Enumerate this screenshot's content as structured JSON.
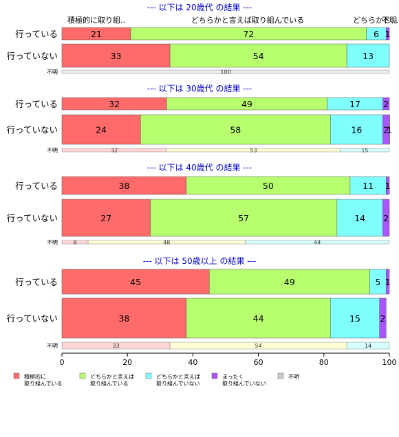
{
  "chart_data": {
    "type": "bar",
    "orientation": "horizontal",
    "stacked": true,
    "xlim": [
      0,
      100
    ],
    "xticks": [
      0,
      20,
      40,
      60,
      80,
      100
    ],
    "top_labels": [
      "積極的に取り組..",
      "どちらかと言えば取り組んでいる",
      "どちらかと…",
      "不明"
    ],
    "panels": [
      {
        "title": "--- 以下は 20歳代 の結果 ---",
        "rows": [
          {
            "label": "行っている",
            "values": [
              21,
              72,
              6,
              1
            ]
          },
          {
            "label": "行っていない",
            "values": [
              33,
              54,
              13,
              0
            ]
          }
        ],
        "unknown": {
          "label": "不明",
          "values": [
            0,
            0,
            0,
            0,
            100
          ]
        }
      },
      {
        "title": "--- 以下は 30歳代 の結果 ---",
        "rows": [
          {
            "label": "行っている",
            "values": [
              32,
              49,
              17,
              2
            ]
          },
          {
            "label": "行っていない",
            "values": [
              24,
              58,
              16,
              2,
              1
            ]
          }
        ],
        "unknown": {
          "label": "不明",
          "values": [
            32,
            53,
            15,
            0
          ]
        }
      },
      {
        "title": "--- 以下は 40歳代 の結果 ---",
        "rows": [
          {
            "label": "行っている",
            "values": [
              38,
              50,
              11,
              1
            ]
          },
          {
            "label": "行っていない",
            "values": [
              27,
              57,
              14,
              2
            ]
          }
        ],
        "unknown": {
          "label": "不明",
          "values": [
            8,
            48,
            44,
            0
          ]
        }
      },
      {
        "title": "--- 以下は 50歳以上 の結果 ---",
        "rows": [
          {
            "label": "行っている",
            "values": [
              45,
              49,
              5,
              1
            ]
          },
          {
            "label": "行っていない",
            "values": [
              38,
              44,
              15,
              2
            ]
          }
        ],
        "unknown": {
          "label": "不明",
          "values": [
            33,
            54,
            14,
            0
          ]
        }
      }
    ],
    "legend": [
      {
        "label": "積極的に\n取り組んでいる",
        "color": "#ff6b6b"
      },
      {
        "label": "どちらかと言えば\n取り組んでいる",
        "color": "#b8ff70"
      },
      {
        "label": "どちらかと言えば\n取り組んでいない",
        "color": "#80ffff"
      },
      {
        "label": "まったく\n取り組んでいない",
        "color": "#aa55ff"
      },
      {
        "label": "不明",
        "color": "#cccccc"
      }
    ],
    "colors_main": [
      "#ff6b6b",
      "#b8ff70",
      "#80ffff",
      "#aa55ff",
      "#cccccc"
    ],
    "colors_unknown": [
      "#ffd6d6",
      "#ffffd6",
      "#d6ffff",
      "#e6d6ff",
      "#ededed"
    ],
    "title_color": "#0000cc"
  }
}
